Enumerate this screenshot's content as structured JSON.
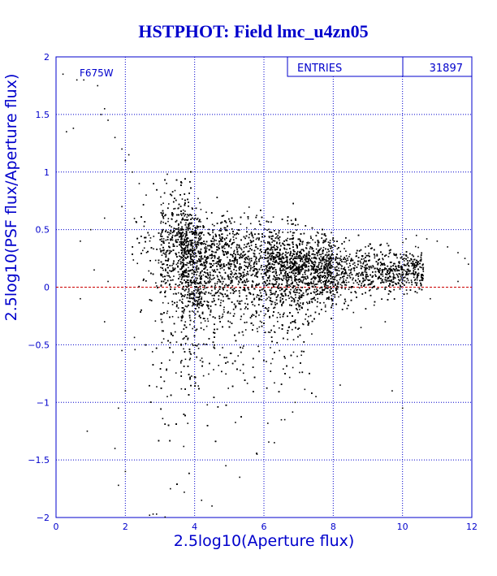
{
  "chart_data": {
    "type": "scatter",
    "title": "HSTPHOT: Field lmc_u4zn05",
    "xlabel": "2.5log10(Aperture flux)",
    "ylabel": "2.5log10(PSF flux/Aperture flux)",
    "xlim": [
      0,
      12
    ],
    "ylim": [
      -2,
      2
    ],
    "x_ticks": [
      "0",
      "2",
      "4",
      "6",
      "8",
      "10",
      "12"
    ],
    "y_ticks": [
      "-2",
      "-1.5",
      "-1",
      "-0.5",
      "0",
      "0.5",
      "1",
      "1.5",
      "2"
    ],
    "grid": true,
    "reference_line_y": 0,
    "filter_label": "F675W",
    "stats": {
      "label": "ENTRIES",
      "value": "31897"
    },
    "entries": 31897,
    "colors": {
      "text": "#0000cc",
      "grid": "#0000cc",
      "points": "#000000",
      "reference": "#cc0000"
    },
    "series": [
      {
        "distribution": {
          "ridge": [
            [
              3.5,
              0.3
            ],
            [
              4.0,
              0.2
            ],
            [
              5.0,
              0.16
            ],
            [
              6.0,
              0.14
            ],
            [
              7.0,
              0.14
            ],
            [
              8.0,
              0.14
            ],
            [
              9.0,
              0.13
            ],
            [
              10.0,
              0.14
            ],
            [
              10.5,
              0.15
            ]
          ],
          "x_range": [
            0.2,
            11.9
          ]
        },
        "outliers": [
          [
            0.2,
            1.85
          ],
          [
            0.6,
            1.8
          ],
          [
            0.8,
            1.8
          ],
          [
            0.3,
            1.35
          ],
          [
            0.5,
            1.38
          ],
          [
            1.2,
            1.75
          ],
          [
            1.4,
            1.55
          ],
          [
            1.3,
            1.5
          ],
          [
            1.5,
            1.45
          ],
          [
            1.7,
            1.3
          ],
          [
            1.9,
            1.2
          ],
          [
            2.0,
            1.1
          ],
          [
            2.1,
            1.15
          ],
          [
            2.2,
            1.0
          ],
          [
            2.4,
            0.9
          ],
          [
            2.6,
            0.8
          ],
          [
            0.7,
            0.4
          ],
          [
            1.0,
            0.5
          ],
          [
            1.4,
            0.6
          ],
          [
            1.9,
            0.7
          ],
          [
            1.1,
            0.15
          ],
          [
            1.5,
            0.05
          ],
          [
            0.7,
            -0.1
          ],
          [
            1.4,
            -0.3
          ],
          [
            1.9,
            -0.55
          ],
          [
            2.0,
            -0.9
          ],
          [
            1.8,
            -1.05
          ],
          [
            0.9,
            -1.25
          ],
          [
            1.7,
            -1.4
          ],
          [
            2.0,
            -1.6
          ],
          [
            1.8,
            -1.72
          ],
          [
            2.7,
            -1.98
          ],
          [
            2.8,
            -1.97
          ],
          [
            2.9,
            -1.97
          ],
          [
            3.3,
            -1.75
          ],
          [
            3.7,
            -1.78
          ],
          [
            4.2,
            -1.85
          ],
          [
            4.5,
            -1.9
          ],
          [
            4.9,
            -1.55
          ],
          [
            5.3,
            -1.65
          ],
          [
            5.8,
            -1.45
          ],
          [
            6.3,
            -1.35
          ],
          [
            6.6,
            -1.15
          ],
          [
            6.9,
            -1.0
          ],
          [
            7.5,
            -0.95
          ],
          [
            8.2,
            -0.85
          ],
          [
            9.7,
            -0.9
          ],
          [
            10.0,
            -1.05
          ],
          [
            10.1,
            0.42
          ],
          [
            10.4,
            0.45
          ],
          [
            10.7,
            0.42
          ],
          [
            11.0,
            0.4
          ],
          [
            11.3,
            0.35
          ],
          [
            11.6,
            0.3
          ],
          [
            11.8,
            0.25
          ],
          [
            11.9,
            0.2
          ],
          [
            9.5,
            -0.3
          ],
          [
            8.8,
            -0.35
          ],
          [
            10.8,
            -0.1
          ],
          [
            11.6,
            0.05
          ],
          [
            10.6,
            0.17
          ]
        ]
      }
    ]
  }
}
